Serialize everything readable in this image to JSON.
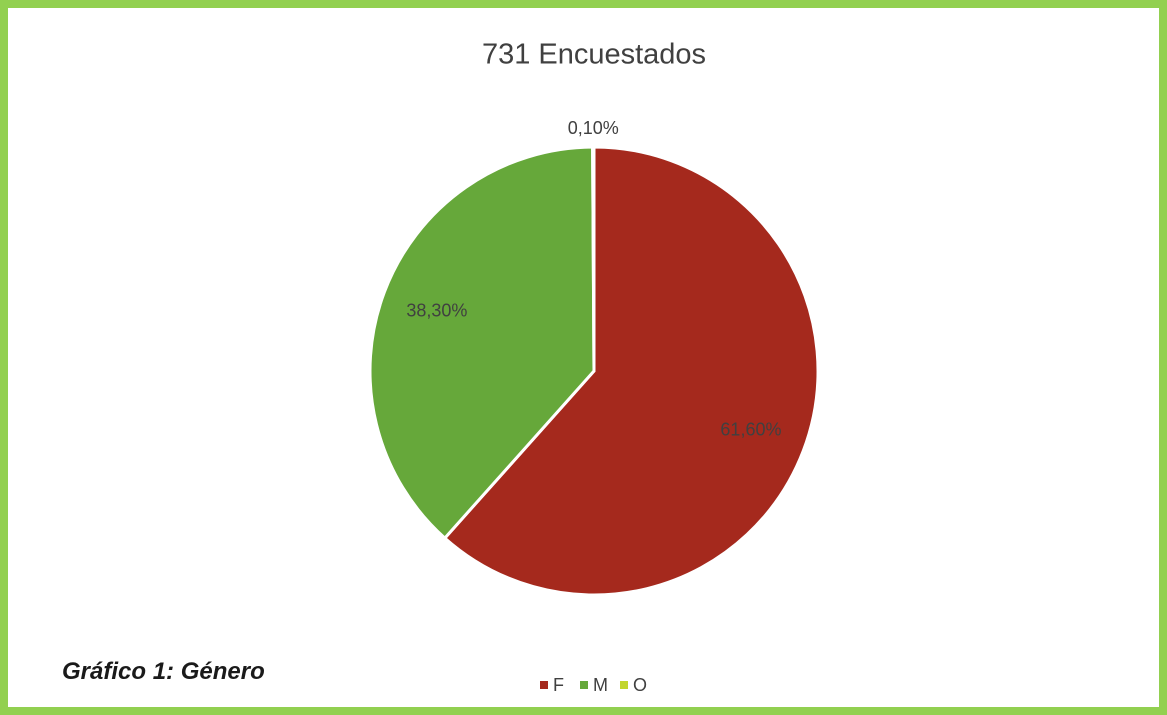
{
  "chart_data": {
    "type": "pie",
    "title": "731 Encuestados",
    "categories": [
      "F",
      "M",
      "O"
    ],
    "values": [
      61.6,
      38.3,
      0.1
    ],
    "value_labels": [
      "61,60%",
      "38,30%",
      "0,10%"
    ],
    "colors": [
      "#a5291d",
      "#66a83a",
      "#c2d62e"
    ],
    "legend": "bottom"
  },
  "caption": "Gráfico 1: Género"
}
